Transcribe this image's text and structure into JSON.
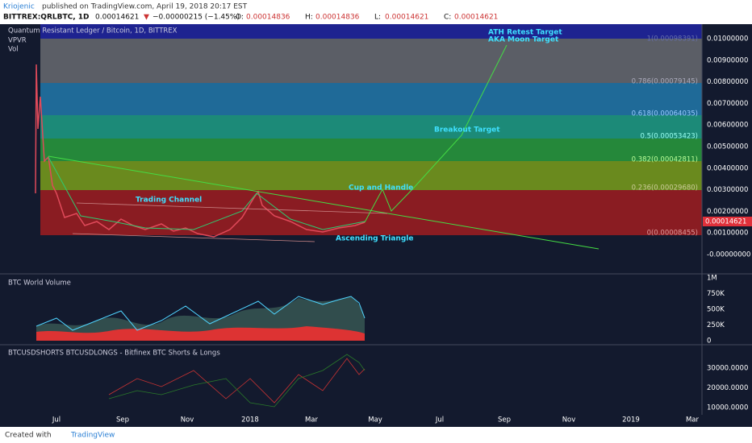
{
  "header": {
    "author": "Kriojenic",
    "published": "published on TradingView.com, April 19, 2018 20:17 EST",
    "symbol": "BITTREX:QRLBTC, 1D",
    "price": "0.00014621",
    "change": "−0.00000215 (−1.45%)",
    "ohlc": [
      {
        "label": "O:",
        "value": "0.00014836"
      },
      {
        "label": "H:",
        "value": "0.00014836"
      },
      {
        "label": "L:",
        "value": "0.00014621"
      },
      {
        "label": "C:",
        "value": "0.00014621"
      }
    ]
  },
  "main_pane": {
    "title": "Quantum Resistant Ledger / Bitcoin, 1D, BITTREX",
    "indicators": [
      "VPVR",
      "Vol"
    ],
    "fib_levels": [
      "1(0.00098391)",
      "0.786(0.00079145)",
      "0.618(0.00064035)",
      "0.5(0.00053423)",
      "0.382(0.00042811)",
      "0.236(0.00029680)",
      "0(0.00008455)"
    ],
    "y_axis": [
      "0.01000000",
      "0.00900000",
      "0.00800000",
      "0.00700000",
      "0.00600000",
      "0.00500000",
      "0.00400000",
      "0.00300000",
      "0.00200000",
      "0.00100000",
      "-0.00000000"
    ],
    "last_price": "0.00014621",
    "annotations": [
      "ATH Retest Target",
      "AKA Moon Target",
      "Breakout Target",
      "Cup and Handle",
      "Trading Channel",
      "Ascending Triangle"
    ]
  },
  "volume_pane": {
    "title": "BTC World Volume",
    "y_axis": [
      "1M",
      "750K",
      "500K",
      "250K",
      "0"
    ]
  },
  "shorts_pane": {
    "title": "BTCUSDSHORTS BTCUSDLONGS - Bitfinex BTC Shorts & Longs",
    "y_axis": [
      "30000.0000",
      "20000.0000",
      "10000.0000"
    ]
  },
  "x_axis": [
    "Jul",
    "Sep",
    "Nov",
    "2018",
    "Mar",
    "May",
    "Jul",
    "Sep",
    "Nov",
    "2019",
    "Mar"
  ],
  "footer": {
    "created": "Created with",
    "brand": "TradingView"
  }
}
